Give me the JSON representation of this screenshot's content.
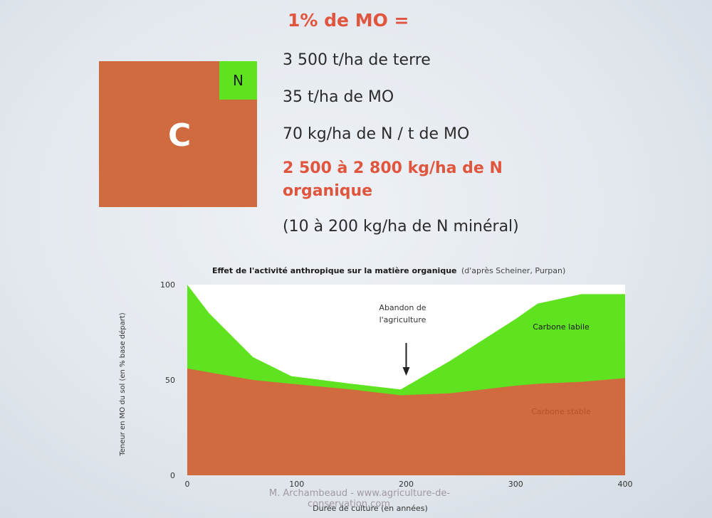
{
  "slide": {
    "title": "1% de MO =",
    "box_letter_c": "C",
    "box_letter_n": "N",
    "lines": [
      "3 500 t/ha de terre",
      "35 t/ha de MO",
      "70 kg/ha de N / t  de MO",
      "2 500 à 2 800 kg/ha de N",
      "organique",
      "(10 à 200 kg/ha de N minéral)"
    ],
    "watermark_line1": "M. Archambeaud - www.agriculture-de-",
    "watermark_line2": "conservation.com"
  },
  "colors": {
    "orange": "#cf6b3e",
    "green": "#5fe21f",
    "red_text": "#e0553d"
  },
  "chart_data": {
    "type": "area",
    "title": "Effet de l'activité anthropique sur la matière organique",
    "subtitle": "(d'après Scheiner, Purpan)",
    "xlabel": "Durée de culture (en années)",
    "ylabel": "Teneur en MO du sol (en % base départ)",
    "xlim": [
      0,
      400
    ],
    "ylim": [
      0,
      100
    ],
    "x_ticks": [
      0,
      100,
      200,
      300,
      400
    ],
    "y_ticks": [
      0,
      50,
      100
    ],
    "x": [
      0,
      20,
      60,
      95,
      150,
      195,
      240,
      300,
      320,
      360,
      400
    ],
    "series": [
      {
        "name": "Carbone stable",
        "color": "#cf6b3e",
        "values": [
          56,
          54,
          50,
          48,
          45,
          42,
          43,
          47,
          48,
          49,
          51
        ]
      },
      {
        "name": "Carbone labile",
        "color": "#5fe21f",
        "values": [
          100,
          85,
          62,
          52,
          48,
          45,
          60,
          82,
          90,
          95,
          95
        ]
      }
    ],
    "annotation": {
      "text_line1": "Abandon de",
      "text_line2": "l'agriculture",
      "x": 200
    }
  }
}
